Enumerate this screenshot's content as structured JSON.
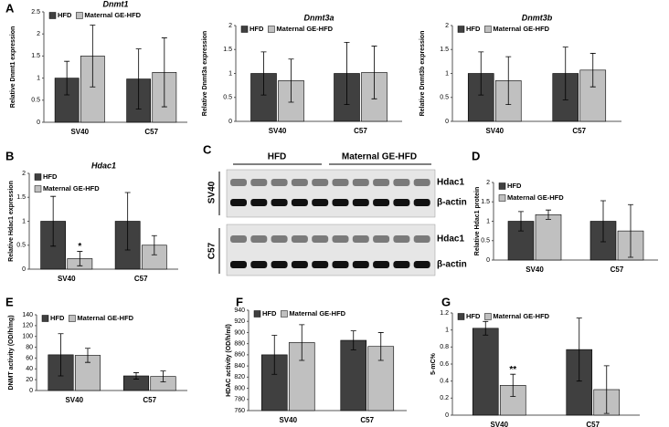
{
  "panel_labels": [
    "A",
    "B",
    "C",
    "D",
    "E",
    "F",
    "G"
  ],
  "blot": {
    "groups": [
      "HFD",
      "Maternal GE-HFD"
    ],
    "rows": [
      "SV40",
      "C57"
    ],
    "bands": [
      "Hdac1",
      "β-actin",
      "Hdac1",
      "β-actin"
    ]
  },
  "chart_data": [
    {
      "type": "bar",
      "title": "Dnmt1",
      "y_label": "Relative Dnmt1 expression",
      "categories": [
        "SV40",
        "C57"
      ],
      "series": [
        {
          "name": "HFD",
          "color": "#404040",
          "values": [
            1.0,
            0.98
          ],
          "errors": [
            0.38,
            0.68
          ]
        },
        {
          "name": "Maternal GE-HFD",
          "color": "#c0c0c0",
          "values": [
            1.5,
            1.13
          ],
          "errors": [
            0.7,
            0.78
          ]
        }
      ],
      "ylim": [
        0,
        2.5
      ],
      "yticks": [
        0,
        0.5,
        1,
        1.5,
        2,
        2.5
      ],
      "legend": "top-left"
    },
    {
      "type": "bar",
      "title": "Dnmt3a",
      "y_label": "Relative Dnmt3a expression",
      "categories": [
        "SV40",
        "C57"
      ],
      "series": [
        {
          "name": "HFD",
          "color": "#404040",
          "values": [
            1.0,
            1.0
          ],
          "errors": [
            0.45,
            0.65
          ]
        },
        {
          "name": "Maternal GE-HFD",
          "color": "#c0c0c0",
          "values": [
            0.85,
            1.02
          ],
          "errors": [
            0.45,
            0.55
          ]
        }
      ],
      "ylim": [
        0,
        2
      ],
      "yticks": [
        0,
        0.5,
        1,
        1.5,
        2
      ],
      "legend": "top-left"
    },
    {
      "type": "bar",
      "title": "Dnmt3b",
      "y_label": "Relative Dnmt3b expression",
      "categories": [
        "SV40",
        "C57"
      ],
      "series": [
        {
          "name": "HFD",
          "color": "#404040",
          "values": [
            1.0,
            1.0
          ],
          "errors": [
            0.45,
            0.55
          ]
        },
        {
          "name": "Maternal GE-HFD",
          "color": "#c0c0c0",
          "values": [
            0.85,
            1.07
          ],
          "errors": [
            0.5,
            0.35
          ]
        }
      ],
      "ylim": [
        0,
        2
      ],
      "yticks": [
        0,
        0.5,
        1,
        1.5,
        2
      ],
      "legend": "top-left"
    },
    {
      "type": "bar",
      "title": "Hdac1",
      "y_label": "Relative Hdac1 expression",
      "categories": [
        "SV40",
        "C57"
      ],
      "series": [
        {
          "name": "HFD",
          "color": "#404040",
          "values": [
            1.0,
            1.0
          ],
          "errors": [
            0.52,
            0.6
          ]
        },
        {
          "name": "Maternal GE-HFD",
          "color": "#c0c0c0",
          "values": [
            0.22,
            0.5
          ],
          "errors": [
            0.15,
            0.2
          ],
          "significance": [
            "*",
            null
          ]
        }
      ],
      "ylim": [
        0,
        2
      ],
      "yticks": [
        0,
        0.5,
        1,
        1.5,
        2
      ],
      "legend": "top-left"
    },
    {
      "type": "bar",
      "y_label": "Relative Hdac1 protein",
      "categories": [
        "SV40",
        "C57"
      ],
      "series": [
        {
          "name": "HFD",
          "color": "#404040",
          "values": [
            1.0,
            1.0
          ],
          "errors": [
            0.25,
            0.53
          ]
        },
        {
          "name": "Maternal GE-HFD",
          "color": "#c0c0c0",
          "values": [
            1.17,
            0.75
          ],
          "errors": [
            0.12,
            0.68
          ]
        }
      ],
      "ylim": [
        0,
        2
      ],
      "yticks": [
        0,
        0.5,
        1,
        1.5,
        2
      ],
      "legend": "top-left"
    },
    {
      "type": "bar",
      "y_label": "DNMT activity (OD/h/mg)",
      "categories": [
        "SV40",
        "C57"
      ],
      "series": [
        {
          "name": "HFD",
          "color": "#404040",
          "values": [
            66,
            27
          ],
          "errors": [
            39,
            6
          ]
        },
        {
          "name": "Maternal GE-HFD",
          "color": "#c0c0c0",
          "values": [
            65,
            26
          ],
          "errors": [
            13,
            10
          ]
        }
      ],
      "ylim": [
        0,
        140
      ],
      "yticks": [
        0,
        20,
        40,
        60,
        80,
        100,
        120,
        140
      ],
      "legend": "top-left"
    },
    {
      "type": "bar",
      "y_label": "HDAC activity (OD/h/ml)",
      "categories": [
        "SV40",
        "C57"
      ],
      "series": [
        {
          "name": "HFD",
          "color": "#404040",
          "values": [
            860,
            886
          ],
          "errors": [
            35,
            17
          ]
        },
        {
          "name": "Maternal GE-HFD",
          "color": "#c0c0c0",
          "values": [
            882,
            875
          ],
          "errors": [
            32,
            25
          ]
        }
      ],
      "ylim": [
        760,
        940
      ],
      "yticks": [
        760,
        780,
        800,
        820,
        840,
        860,
        880,
        900,
        920,
        940
      ],
      "legend": "top-left"
    },
    {
      "type": "bar",
      "y_label": "5-mC%",
      "categories": [
        "SV40",
        "C57"
      ],
      "series": [
        {
          "name": "HFD",
          "color": "#404040",
          "values": [
            1.02,
            0.77
          ],
          "errors": [
            0.08,
            0.37
          ]
        },
        {
          "name": "Maternal GE-HFD",
          "color": "#c0c0c0",
          "values": [
            0.35,
            0.3
          ],
          "errors": [
            0.13,
            0.28
          ],
          "significance": [
            "**",
            null
          ]
        }
      ],
      "ylim": [
        0,
        1.2
      ],
      "yticks": [
        0,
        0.2,
        0.4,
        0.6,
        0.8,
        1,
        1.2
      ],
      "legend": "top-left"
    }
  ]
}
